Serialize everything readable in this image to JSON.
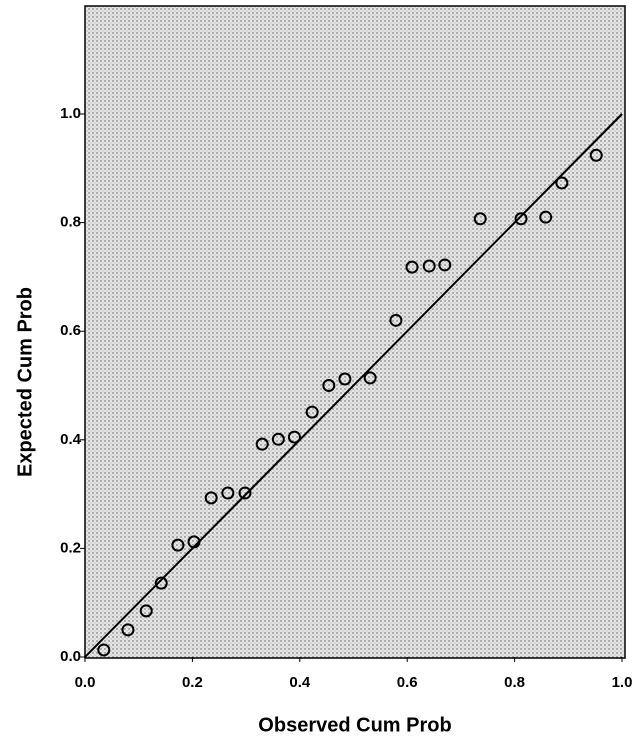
{
  "chart_data": {
    "type": "scatter",
    "x_label": "Observed Cum Prob",
    "y_label": "Expected Cum Prob",
    "xlim": [
      0,
      1
    ],
    "ylim": [
      0,
      1.2
    ],
    "xticks": [
      {
        "value": 0,
        "label": "0.0"
      },
      {
        "value": 0.2,
        "label": "0.2"
      },
      {
        "value": 0.4,
        "label": "0.4"
      },
      {
        "value": 0.6,
        "label": "0.6"
      },
      {
        "value": 0.8,
        "label": "0.8"
      },
      {
        "value": 1,
        "label": "1.0"
      }
    ],
    "yticks": [
      {
        "value": 0,
        "label": "0.0"
      },
      {
        "value": 0.2,
        "label": "0.2"
      },
      {
        "value": 0.4,
        "label": "0.4"
      },
      {
        "value": 0.6,
        "label": "0.6"
      },
      {
        "value": 0.8,
        "label": "0.8"
      },
      {
        "value": 1,
        "label": "1.0"
      }
    ],
    "reference_line": true,
    "color": "#000000",
    "x": [
      0.035,
      0.08,
      0.114,
      0.142,
      0.173,
      0.203,
      0.235,
      0.266,
      0.298,
      0.33,
      0.36,
      0.39,
      0.423,
      0.454,
      0.484,
      0.531,
      0.579,
      0.609,
      0.641,
      0.67,
      0.736,
      0.812,
      0.858,
      0.888,
      0.952
    ],
    "values": [
      0.013,
      0.05,
      0.085,
      0.136,
      0.206,
      0.212,
      0.293,
      0.302,
      0.302,
      0.392,
      0.401,
      0.405,
      0.451,
      0.5,
      0.512,
      0.514,
      0.62,
      0.718,
      0.72,
      0.722,
      0.807,
      0.807,
      0.81,
      0.873,
      0.924
    ]
  }
}
